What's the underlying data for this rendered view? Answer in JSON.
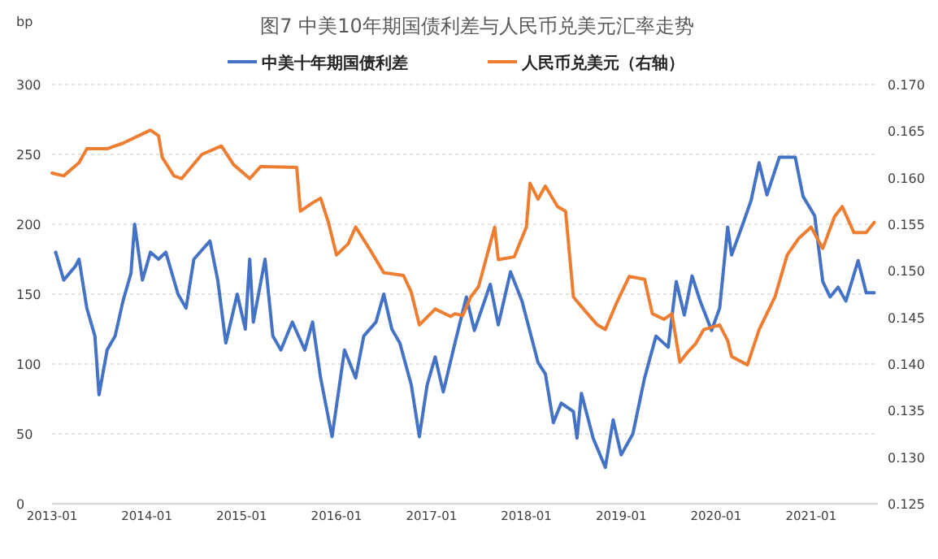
{
  "chart_data": {
    "type": "line",
    "title": "图7  中美10年期国债利差与人民币兑美元汇率走势",
    "ylabel": "bp",
    "legend": "top",
    "grid": "y",
    "marker": "none",
    "line_style": "solid",
    "xlim": [
      "2013-01",
      "2021-09-15"
    ],
    "xticks": [
      "2013-01",
      "2014-01",
      "2015-01",
      "2016-01",
      "2017-01",
      "2018-01",
      "2019-01",
      "2020-01",
      "2021-01"
    ],
    "ylim": [
      0,
      300
    ],
    "yticks": [
      0,
      50,
      100,
      150,
      200,
      250,
      300
    ],
    "y2lim": [
      0.125,
      0.17
    ],
    "y2ticks": [
      {
        "value": 0.125,
        "label": "0.125"
      },
      {
        "value": 0.13,
        "label": "0.130"
      },
      {
        "value": 0.135,
        "label": "0.135"
      },
      {
        "value": 0.14,
        "label": "0.140"
      },
      {
        "value": 0.145,
        "label": "0.145"
      },
      {
        "value": 0.15,
        "label": "0.150"
      },
      {
        "value": 0.155,
        "label": "0.155"
      },
      {
        "value": 0.16,
        "label": "0.160"
      },
      {
        "value": 0.165,
        "label": "0.165"
      },
      {
        "value": 0.17,
        "label": "0.170"
      }
    ],
    "series": [
      {
        "name": "中美十年期国债利差",
        "color": "#4472c4",
        "x": [
          "2013-01-15",
          "2013-02-15",
          "2013-04-01",
          "2013-04-15",
          "2013-05-15",
          "2013-06-15",
          "2013-07-01",
          "2013-08-01",
          "2013-09-01",
          "2013-10-01",
          "2013-11-01",
          "2013-11-15",
          "2013-12-15",
          "2014-01-15",
          "2014-02-15",
          "2014-03-15",
          "2014-05-01",
          "2014-06-01",
          "2014-07-01",
          "2014-09-01",
          "2014-10-01",
          "2014-11-01",
          "2014-12-15",
          "2015-01-15",
          "2015-02-01",
          "2015-02-15",
          "2015-04-01",
          "2015-05-01",
          "2015-06-01",
          "2015-07-15",
          "2015-09-01",
          "2015-10-01",
          "2015-11-01",
          "2015-12-15",
          "2016-02-01",
          "2016-03-15",
          "2016-04-15",
          "2016-06-01",
          "2016-07-01",
          "2016-08-01",
          "2016-09-01",
          "2016-10-15",
          "2016-11-15",
          "2016-12-15",
          "2017-01-15",
          "2017-02-15",
          "2017-04-01",
          "2017-05-15",
          "2017-06-15",
          "2017-08-15",
          "2017-09-15",
          "2017-11-01",
          "2017-12-15",
          "2018-02-15",
          "2018-03-15",
          "2018-04-15",
          "2018-05-15",
          "2018-07-01",
          "2018-07-15",
          "2018-08-01",
          "2018-09-15",
          "2018-11-01",
          "2018-12-01",
          "2019-01-01",
          "2019-02-15",
          "2019-04-01",
          "2019-05-15",
          "2019-07-01",
          "2019-08-01",
          "2019-09-01",
          "2019-10-01",
          "2019-11-01",
          "2019-12-15",
          "2020-01-15",
          "2020-02-15",
          "2020-03-01",
          "2020-04-15",
          "2020-05-15",
          "2020-06-15",
          "2020-07-15",
          "2020-09-01",
          "2020-11-01",
          "2020-12-01",
          "2021-01-15",
          "2021-02-15",
          "2021-03-15",
          "2021-04-15",
          "2021-05-15",
          "2021-07-01",
          "2021-08-01",
          "2021-09-01"
        ],
        "values": [
          180,
          160,
          170,
          175,
          140,
          120,
          78,
          110,
          120,
          145,
          165,
          200,
          160,
          180,
          175,
          180,
          150,
          140,
          175,
          188,
          160,
          115,
          150,
          125,
          175,
          130,
          175,
          120,
          110,
          130,
          110,
          130,
          90,
          48,
          110,
          90,
          120,
          130,
          150,
          125,
          115,
          85,
          48,
          85,
          105,
          80,
          115,
          148,
          124,
          157,
          128,
          166,
          145,
          101,
          93,
          58,
          72,
          66,
          47,
          79,
          47,
          26,
          60,
          35,
          50,
          90,
          120,
          112,
          159,
          135,
          163,
          145,
          124,
          140,
          198,
          178,
          201,
          217,
          244,
          221,
          248,
          248,
          220,
          206,
          159,
          148,
          155,
          145,
          174,
          151,
          151
        ]
      },
      {
        "name": "人民币兑美元（右轴）",
        "color": "#ed7d31",
        "axis": "y2",
        "x": [
          "2013-01-01",
          "2013-02-15",
          "2013-04-15",
          "2013-05-15",
          "2013-08-01",
          "2013-10-01",
          "2014-01-15",
          "2014-02-15",
          "2014-03-01",
          "2014-04-15",
          "2014-05-15",
          "2014-08-01",
          "2014-10-15",
          "2014-12-01",
          "2015-02-01",
          "2015-03-15",
          "2015-08-01",
          "2015-08-15",
          "2015-10-01",
          "2015-11-01",
          "2015-12-01",
          "2016-01-01",
          "2016-02-15",
          "2016-03-15",
          "2016-05-15",
          "2016-07-01",
          "2016-09-15",
          "2016-10-15",
          "2016-11-15",
          "2017-01-15",
          "2017-03-15",
          "2017-04-01",
          "2017-05-01",
          "2017-06-01",
          "2017-07-01",
          "2017-09-01",
          "2017-09-15",
          "2017-11-15",
          "2018-01-01",
          "2018-01-15",
          "2018-02-15",
          "2018-03-15",
          "2018-05-01",
          "2018-06-01",
          "2018-07-01",
          "2018-08-15",
          "2018-10-01",
          "2018-11-01",
          "2018-12-15",
          "2019-02-01",
          "2019-04-01",
          "2019-05-01",
          "2019-06-15",
          "2019-07-15",
          "2019-08-15",
          "2019-09-15",
          "2019-10-15",
          "2019-11-15",
          "2020-01-15",
          "2020-02-15",
          "2020-03-01",
          "2020-05-01",
          "2020-06-15",
          "2020-08-15",
          "2020-10-01",
          "2020-11-15",
          "2021-01-01",
          "2021-02-15",
          "2021-04-01",
          "2021-05-01",
          "2021-06-15",
          "2021-08-01",
          "2021-09-01"
        ],
        "values": [
          0.1605,
          0.1602,
          0.1616,
          0.1631,
          0.1631,
          0.1637,
          0.1651,
          0.1645,
          0.1622,
          0.1602,
          0.1599,
          0.1625,
          0.1634,
          0.1614,
          0.1599,
          0.1612,
          0.1611,
          0.1564,
          0.1573,
          0.1578,
          0.1552,
          0.1517,
          0.1529,
          0.1547,
          0.152,
          0.1498,
          0.1495,
          0.1477,
          0.1442,
          0.1459,
          0.1451,
          0.1454,
          0.1452,
          0.1472,
          0.1483,
          0.1547,
          0.1512,
          0.1515,
          0.1547,
          0.1594,
          0.1577,
          0.1591,
          0.1569,
          0.1564,
          0.1472,
          0.1457,
          0.1442,
          0.1437,
          0.1466,
          0.1494,
          0.1491,
          0.1454,
          0.1448,
          0.1454,
          0.1402,
          0.1413,
          0.1422,
          0.1437,
          0.1442,
          0.1425,
          0.1408,
          0.1399,
          0.1437,
          0.1472,
          0.1517,
          0.1535,
          0.1547,
          0.1524,
          0.1558,
          0.1569,
          0.1541,
          0.1541,
          0.1552
        ]
      }
    ]
  }
}
